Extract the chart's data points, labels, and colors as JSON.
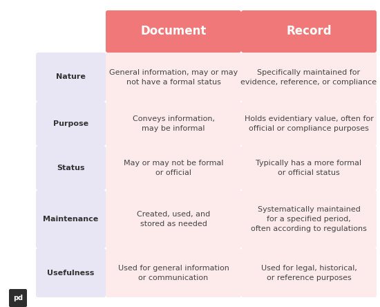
{
  "header_color": "#F07878",
  "header_text_color": "#FFFFFF",
  "row_label_bg": "#E8E6F5",
  "row_label_text_color": "#333333",
  "cell_bg_light": "#FDEAEA",
  "cell_text_color": "#444444",
  "bg_color": "#FFFFFF",
  "headers": [
    "Document",
    "Record"
  ],
  "row_labels": [
    "Nature",
    "Purpose",
    "Status",
    "Maintenance",
    "Usefulness"
  ],
  "doc_cells": [
    "General information, may or may\nnot have a formal status",
    "Conveys information,\nmay be informal",
    "May or may not be formal\nor official",
    "Created, used, and\nstored as needed",
    "Used for general information\nor communication"
  ],
  "rec_cells": [
    "Specifically maintained for\nevidence, reference, or compliance",
    "Holds evidentiary value, often for\nofficial or compliance purposes",
    "Typically has a more formal\nor official status",
    "Systematically maintained\nfor a specified period,\noften according to regulations",
    "Used for legal, historical,\nor reference purposes"
  ],
  "logo_text": "pd",
  "header_fontsize": 12,
  "label_fontsize": 8,
  "cell_fontsize": 8
}
